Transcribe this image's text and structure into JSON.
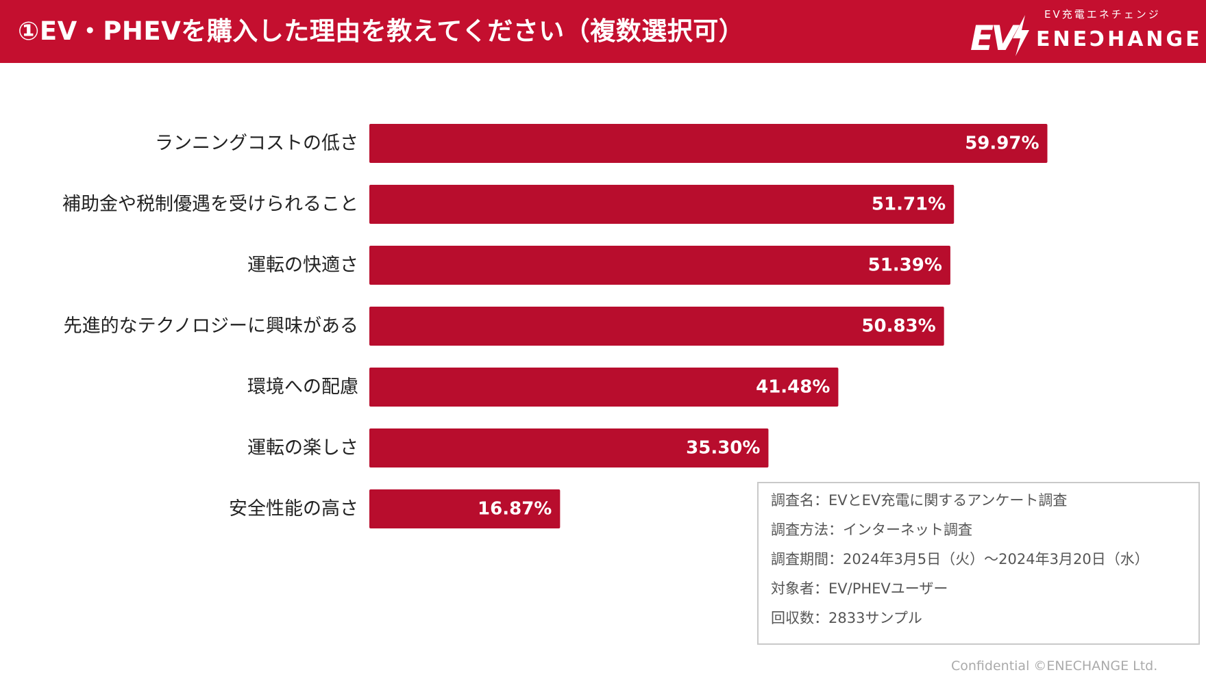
{
  "header": {
    "title": "①EV・PHEVを購入した理由を教えてください（複数選択可）",
    "logo_ev": "EV",
    "logo_sub": "EV充電エネチェンジ",
    "logo_name": "ENEƆHANGE"
  },
  "colors": {
    "brand": "#c40f2f",
    "bar": "#b80d2d"
  },
  "chart_data": {
    "type": "bar",
    "orientation": "horizontal",
    "title": "①EV・PHEVを購入した理由を教えてください（複数選択可）",
    "categories": [
      "ランニングコストの低さ",
      "補助金や税制優遇を受けられること",
      "運転の快適さ",
      "先進的なテクノロジーに興味がある",
      "環境への配慮",
      "運転の楽しさ",
      "安全性能の高さ"
    ],
    "values": [
      59.97,
      51.71,
      51.39,
      50.83,
      41.48,
      35.3,
      16.87
    ],
    "value_labels": [
      "59.97%",
      "51.71%",
      "51.39%",
      "50.83%",
      "41.48%",
      "35.30%",
      "16.87%"
    ],
    "unit": "%",
    "xlim": [
      0,
      100
    ],
    "xlabel": "",
    "ylabel": "",
    "grid": false,
    "legend": "none"
  },
  "survey_note": {
    "lines": [
      "調査名：EVとEV充電に関するアンケート調査",
      "調査方法：インターネット調査",
      "調査期間：2024年3月5日（火）〜2024年3月20日（水）",
      "対象者：EV/PHEVユーザー",
      "回収数：2833サンプル"
    ]
  },
  "footer": {
    "text": "Confidential ©ENECHANGE Ltd."
  }
}
